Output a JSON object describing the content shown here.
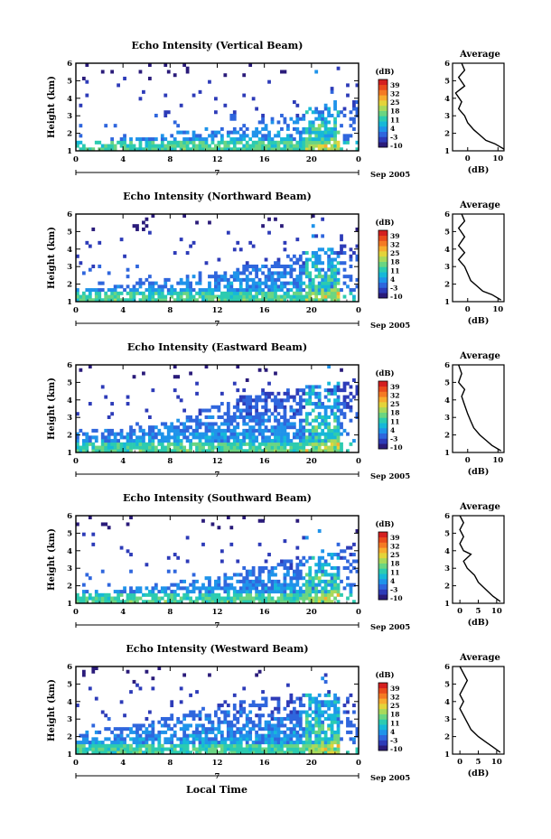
{
  "figure": {
    "xlabel": "Local Time",
    "day_label": "7",
    "date_label": "Sep 2005"
  },
  "colorbar": {
    "unit": "(dB)",
    "ticks": [
      "39",
      "32",
      "25",
      "18",
      "11",
      "4",
      "-3",
      "-10"
    ],
    "range": [
      -10,
      39
    ],
    "colors": [
      "#2a1b7a",
      "#2d3bb8",
      "#2f66dd",
      "#1f93ea",
      "#16b8d8",
      "#2ccbb0",
      "#6ad582",
      "#a9d95a",
      "#e3d43a",
      "#f7ac2f",
      "#f47a24",
      "#e94b1c",
      "#d41f1f"
    ]
  },
  "chart_data": [
    {
      "type": "heatmap",
      "title": "Echo Intensity (Vertical Beam)",
      "ylabel": "Height (km)",
      "xlim": [
        0,
        24
      ],
      "ylim": [
        1,
        6
      ],
      "xticks": [
        "0",
        "4",
        "8",
        "12",
        "16",
        "20",
        "0"
      ],
      "yticks": [
        "1",
        "2",
        "3",
        "4",
        "5",
        "6"
      ],
      "cloud_top_km": [
        1.6,
        1.6,
        1.7,
        1.8,
        2.0,
        2.2,
        2.3,
        2.6,
        2.9,
        3.2,
        3.5,
        3.8,
        4.1
      ],
      "average_profile": {
        "title": "Average",
        "xlabel": "(dB)",
        "xlim": [
          -5,
          12
        ],
        "xticks": [
          "0",
          "10"
        ],
        "yticks": [
          "1",
          "2",
          "3",
          "4",
          "5",
          "6"
        ],
        "x": [
          -2,
          -1,
          -3,
          -1,
          -4,
          -2,
          -3,
          -1,
          0,
          2,
          4,
          6,
          9,
          12
        ],
        "y": [
          6,
          5.6,
          5.2,
          4.7,
          4.3,
          3.8,
          3.4,
          3.0,
          2.6,
          2.2,
          1.9,
          1.6,
          1.4,
          1.1
        ]
      }
    },
    {
      "type": "heatmap",
      "title": "Echo Intensity (Northward Beam)",
      "ylabel": "Height (km)",
      "xlim": [
        0,
        24
      ],
      "ylim": [
        1,
        6
      ],
      "xticks": [
        "0",
        "4",
        "8",
        "12",
        "16",
        "20",
        "0"
      ],
      "yticks": [
        "1",
        "2",
        "3",
        "4",
        "5",
        "6"
      ],
      "cloud_top_km": [
        1.8,
        1.9,
        2.0,
        2.1,
        2.3,
        2.5,
        2.7,
        3.0,
        3.3,
        3.6,
        3.9,
        4.2,
        4.6
      ],
      "average_profile": {
        "title": "Average",
        "xlabel": "(dB)",
        "xlim": [
          -5,
          12
        ],
        "xticks": [
          "0",
          "10"
        ],
        "yticks": [
          "1",
          "2",
          "3",
          "4",
          "5",
          "6"
        ],
        "x": [
          -2,
          -1,
          -3,
          -1,
          -3,
          -1,
          -3,
          -1,
          0,
          1,
          3,
          5,
          8,
          11
        ],
        "y": [
          6,
          5.6,
          5.2,
          4.7,
          4.2,
          3.8,
          3.4,
          3.0,
          2.6,
          2.2,
          1.9,
          1.6,
          1.4,
          1.1
        ]
      }
    },
    {
      "type": "heatmap",
      "title": "Echo Intensity (Eastward Beam)",
      "ylabel": "Height (km)",
      "xlim": [
        0,
        24
      ],
      "ylim": [
        1,
        6
      ],
      "xticks": [
        "0",
        "4",
        "8",
        "12",
        "16",
        "20",
        "0"
      ],
      "yticks": [
        "1",
        "2",
        "3",
        "4",
        "5",
        "6"
      ],
      "cloud_top_km": [
        2.2,
        2.3,
        2.4,
        2.6,
        2.8,
        3.2,
        3.8,
        4.2,
        4.4,
        4.6,
        4.8,
        5.0,
        5.2
      ],
      "average_profile": {
        "title": "Average",
        "xlabel": "(dB)",
        "xlim": [
          -5,
          12
        ],
        "xticks": [
          "0",
          "10"
        ],
        "yticks": [
          "1",
          "2",
          "3",
          "4",
          "5",
          "6"
        ],
        "x": [
          -3,
          -2,
          -3,
          -1,
          -2,
          -1,
          0,
          1,
          2,
          4,
          6,
          8,
          11
        ],
        "y": [
          6,
          5.5,
          5.0,
          4.6,
          4.2,
          3.7,
          3.2,
          2.8,
          2.4,
          2.0,
          1.7,
          1.4,
          1.1
        ]
      }
    },
    {
      "type": "heatmap",
      "title": "Echo Intensity (Southward Beam)",
      "ylabel": "Height (km)",
      "xlim": [
        0,
        24
      ],
      "ylim": [
        1,
        6
      ],
      "xticks": [
        "0",
        "4",
        "8",
        "12",
        "16",
        "20",
        "0"
      ],
      "yticks": [
        "1",
        "2",
        "3",
        "4",
        "5",
        "6"
      ],
      "cloud_top_km": [
        1.7,
        1.8,
        1.9,
        2.0,
        2.2,
        2.4,
        2.6,
        2.9,
        3.2,
        3.5,
        3.8,
        4.2,
        4.5
      ],
      "average_profile": {
        "title": "Average",
        "xlabel": "(dB)",
        "xlim": [
          -2,
          12
        ],
        "xticks": [
          "0",
          "5",
          "10"
        ],
        "yticks": [
          "1",
          "2",
          "3",
          "4",
          "5",
          "6"
        ],
        "x": [
          0,
          1,
          0,
          1,
          0,
          1,
          3,
          1,
          2,
          4,
          5,
          7,
          9,
          11
        ],
        "y": [
          6,
          5.6,
          5.2,
          4.8,
          4.4,
          4.0,
          3.8,
          3.4,
          3.0,
          2.6,
          2.2,
          1.8,
          1.4,
          1.1
        ]
      }
    },
    {
      "type": "heatmap",
      "title": "Echo Intensity (Westward Beam)",
      "ylabel": "Height (km)",
      "xlim": [
        0,
        24
      ],
      "ylim": [
        1,
        6
      ],
      "xticks": [
        "0",
        "4",
        "8",
        "12",
        "16",
        "20",
        "0"
      ],
      "yticks": [
        "1",
        "2",
        "3",
        "4",
        "5",
        "6"
      ],
      "cloud_top_km": [
        2.2,
        2.4,
        2.6,
        2.9,
        3.2,
        3.5,
        3.8,
        4.0,
        4.2,
        4.3,
        4.4,
        4.5,
        4.6
      ],
      "average_profile": {
        "title": "Average",
        "xlabel": "(dB)",
        "xlim": [
          -2,
          12
        ],
        "xticks": [
          "0",
          "5",
          "10"
        ],
        "yticks": [
          "1",
          "2",
          "3",
          "4",
          "5",
          "6"
        ],
        "x": [
          0,
          1,
          2,
          1,
          0,
          1,
          0,
          1,
          2,
          3,
          5,
          7,
          9,
          11
        ],
        "y": [
          6,
          5.6,
          5.2,
          4.8,
          4.4,
          4.0,
          3.6,
          3.2,
          2.8,
          2.4,
          2.0,
          1.7,
          1.4,
          1.1
        ]
      }
    }
  ]
}
